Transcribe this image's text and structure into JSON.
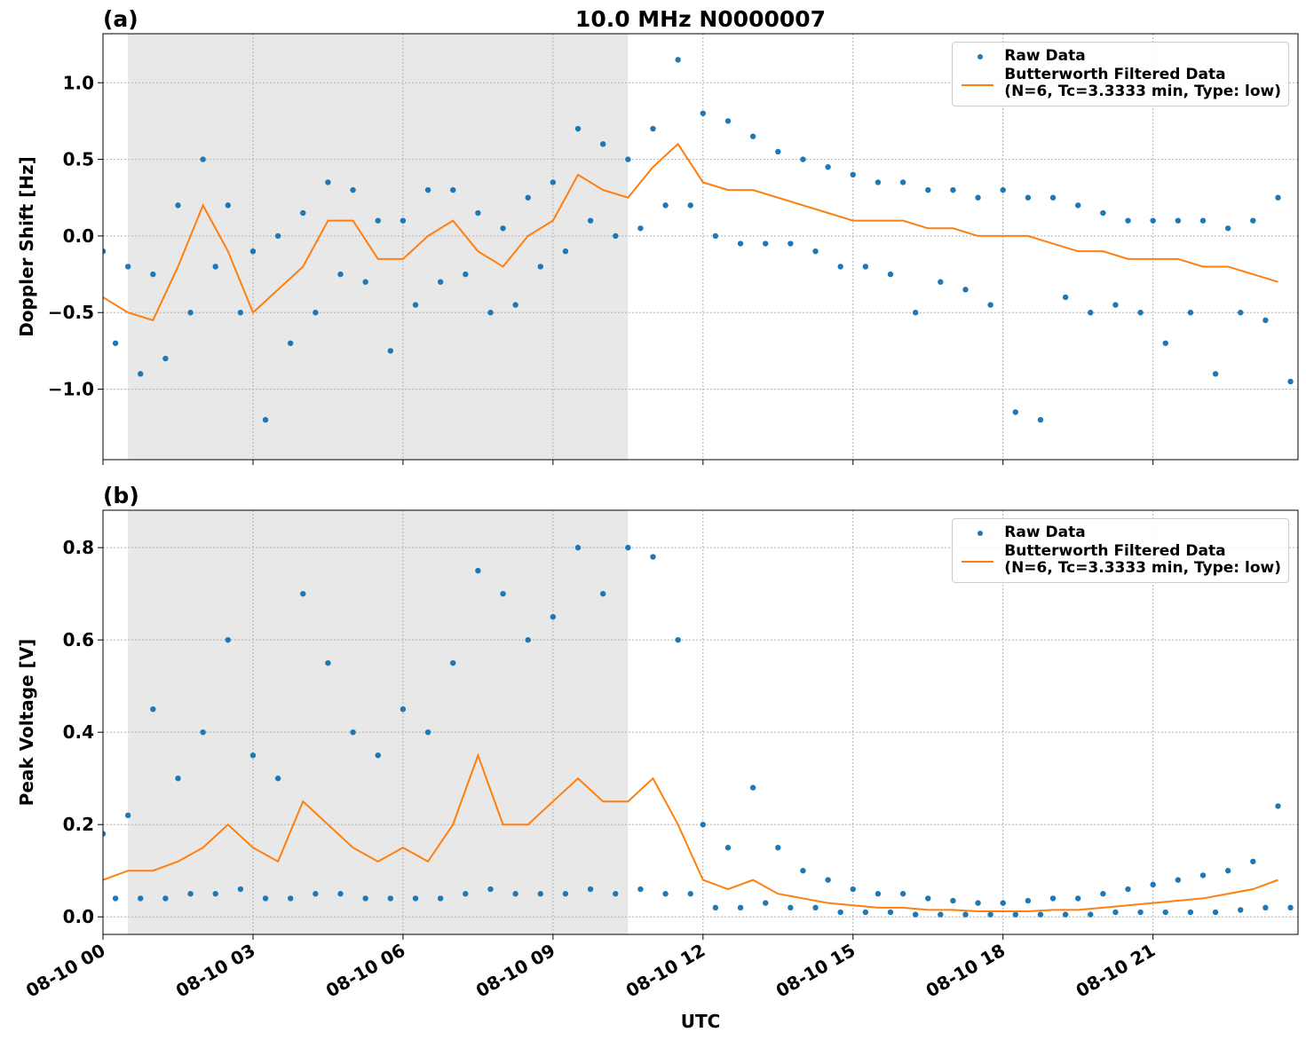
{
  "chart_data": [
    {
      "type": "scatter",
      "title": "10.0 MHz N0000007",
      "panel_label": "(a)",
      "ylabel": "Doppler Shift [Hz]",
      "xlim": [
        0,
        23.9
      ],
      "ylim": [
        -1.46,
        1.32
      ],
      "grid": true,
      "show_xtick_labels": false,
      "xticks": [
        0,
        3,
        6,
        9,
        12,
        15,
        18,
        21
      ],
      "yticks": [
        {
          "value": -1.0,
          "label": "−1.0"
        },
        {
          "value": -0.5,
          "label": "−0.5"
        },
        {
          "value": 0.0,
          "label": "0.0"
        },
        {
          "value": 0.5,
          "label": "0.5"
        },
        {
          "value": 1.0,
          "label": "1.0"
        }
      ],
      "shaded_span": [
        0.5,
        10.5
      ],
      "shade_color": "#e8e8e8",
      "legend": "upper right",
      "series": [
        {
          "name": "Raw Data",
          "type": "scatter",
          "color": "#1f77b4",
          "x": [
            0,
            0.25,
            0.5,
            0.75,
            1,
            1.25,
            1.5,
            1.75,
            2,
            2.25,
            2.5,
            2.75,
            3,
            3.25,
            3.5,
            3.75,
            4,
            4.25,
            4.5,
            4.75,
            5,
            5.25,
            5.5,
            5.75,
            6,
            6.25,
            6.5,
            6.75,
            7,
            7.25,
            7.5,
            7.75,
            8,
            8.25,
            8.5,
            8.75,
            9,
            9.25,
            9.5,
            9.75,
            10,
            10.25,
            10.5,
            10.75,
            11,
            11.25,
            11.5,
            11.75,
            12,
            12.25,
            12.5,
            12.75,
            13,
            13.25,
            13.5,
            13.75,
            14,
            14.25,
            14.5,
            14.75,
            15,
            15.25,
            15.5,
            15.75,
            16,
            16.25,
            16.5,
            16.75,
            17,
            17.25,
            17.5,
            17.75,
            18,
            18.25,
            18.5,
            18.75,
            19,
            19.25,
            19.5,
            19.75,
            20,
            20.25,
            20.5,
            20.75,
            21,
            21.25,
            21.5,
            21.75,
            22,
            22.25,
            22.5,
            22.75,
            23,
            23.25,
            23.5,
            23.75
          ],
          "values": [
            -0.1,
            -0.7,
            -0.2,
            -0.9,
            -0.25,
            -0.8,
            0.2,
            -0.5,
            0.5,
            -0.2,
            0.2,
            -0.5,
            -0.1,
            -1.2,
            0.0,
            -0.7,
            0.15,
            -0.5,
            0.35,
            -0.25,
            0.3,
            -0.3,
            0.1,
            -0.75,
            0.1,
            -0.45,
            0.3,
            -0.3,
            0.3,
            -0.25,
            0.15,
            -0.5,
            0.05,
            -0.45,
            0.25,
            -0.2,
            0.35,
            -0.1,
            0.7,
            0.1,
            0.6,
            0.0,
            0.5,
            0.05,
            0.7,
            0.2,
            1.15,
            0.2,
            0.8,
            0.0,
            0.75,
            -0.05,
            0.65,
            -0.05,
            0.55,
            -0.05,
            0.5,
            -0.1,
            0.45,
            -0.2,
            0.4,
            -0.2,
            0.35,
            -0.25,
            0.35,
            -0.5,
            0.3,
            -0.3,
            0.3,
            -0.35,
            0.25,
            -0.45,
            0.3,
            -1.15,
            0.25,
            -1.2,
            0.25,
            -0.4,
            0.2,
            -0.5,
            0.15,
            -0.45,
            0.1,
            -0.5,
            0.1,
            -0.7,
            0.1,
            -0.5,
            0.1,
            -0.9,
            0.05,
            -0.5,
            0.1,
            -0.55,
            0.25,
            -0.95
          ]
        },
        {
          "name": "Butterworth Filtered Data\n(N=6, Tc=3.3333 min, Type: low)",
          "type": "line",
          "color": "#ff7f0e",
          "x": [
            0,
            0.5,
            1,
            1.5,
            2,
            2.5,
            3,
            3.5,
            4,
            4.5,
            5,
            5.5,
            6,
            6.5,
            7,
            7.5,
            8,
            8.5,
            9,
            9.5,
            10,
            10.5,
            11,
            11.5,
            12,
            12.5,
            13,
            13.5,
            14,
            14.5,
            15,
            15.5,
            16,
            16.5,
            17,
            17.5,
            18,
            18.5,
            19,
            19.5,
            20,
            20.5,
            21,
            21.5,
            22,
            22.5,
            23,
            23.5
          ],
          "values": [
            -0.4,
            -0.5,
            -0.55,
            -0.2,
            0.2,
            -0.1,
            -0.5,
            -0.35,
            -0.2,
            0.1,
            0.1,
            -0.15,
            -0.15,
            0.0,
            0.1,
            -0.1,
            -0.2,
            0.0,
            0.1,
            0.4,
            0.3,
            0.25,
            0.45,
            0.6,
            0.35,
            0.3,
            0.3,
            0.25,
            0.2,
            0.15,
            0.1,
            0.1,
            0.1,
            0.05,
            0.05,
            0.0,
            0.0,
            0.0,
            -0.05,
            -0.1,
            -0.1,
            -0.15,
            -0.15,
            -0.15,
            -0.2,
            -0.2,
            -0.25,
            -0.3
          ]
        }
      ]
    },
    {
      "type": "scatter",
      "panel_label": "(b)",
      "ylabel": "Peak Voltage [V]",
      "xlabel": "UTC",
      "xlim": [
        0,
        23.9
      ],
      "ylim": [
        -0.038,
        0.881
      ],
      "grid": true,
      "show_xtick_labels": true,
      "xticks": [
        {
          "value": 0,
          "label": "08-10 00"
        },
        {
          "value": 3,
          "label": "08-10 03"
        },
        {
          "value": 6,
          "label": "08-10 06"
        },
        {
          "value": 9,
          "label": "08-10 09"
        },
        {
          "value": 12,
          "label": "08-10 12"
        },
        {
          "value": 15,
          "label": "08-10 15"
        },
        {
          "value": 18,
          "label": "08-10 18"
        },
        {
          "value": 21,
          "label": "08-10 21"
        }
      ],
      "yticks": [
        {
          "value": 0.0,
          "label": "0.0"
        },
        {
          "value": 0.2,
          "label": "0.2"
        },
        {
          "value": 0.4,
          "label": "0.4"
        },
        {
          "value": 0.6,
          "label": "0.6"
        },
        {
          "value": 0.8,
          "label": "0.8"
        }
      ],
      "shaded_span": [
        0.5,
        10.5
      ],
      "shade_color": "#e8e8e8",
      "legend": "upper right",
      "series": [
        {
          "name": "Raw Data",
          "type": "scatter",
          "color": "#1f77b4",
          "x": [
            0,
            0.25,
            0.5,
            0.75,
            1,
            1.25,
            1.5,
            1.75,
            2,
            2.25,
            2.5,
            2.75,
            3,
            3.25,
            3.5,
            3.75,
            4,
            4.25,
            4.5,
            4.75,
            5,
            5.25,
            5.5,
            5.75,
            6,
            6.25,
            6.5,
            6.75,
            7,
            7.25,
            7.5,
            7.75,
            8,
            8.25,
            8.5,
            8.75,
            9,
            9.25,
            9.5,
            9.75,
            10,
            10.25,
            10.5,
            10.75,
            11,
            11.25,
            11.5,
            11.75,
            12,
            12.25,
            12.5,
            12.75,
            13,
            13.25,
            13.5,
            13.75,
            14,
            14.25,
            14.5,
            14.75,
            15,
            15.25,
            15.5,
            15.75,
            16,
            16.25,
            16.5,
            16.75,
            17,
            17.25,
            17.5,
            17.75,
            18,
            18.25,
            18.5,
            18.75,
            19,
            19.25,
            19.5,
            19.75,
            20,
            20.25,
            20.5,
            20.75,
            21,
            21.25,
            21.5,
            21.75,
            22,
            22.25,
            22.5,
            22.75,
            23,
            23.25,
            23.5,
            23.75
          ],
          "values": [
            0.18,
            0.04,
            0.22,
            0.04,
            0.45,
            0.04,
            0.3,
            0.05,
            0.4,
            0.05,
            0.6,
            0.06,
            0.35,
            0.04,
            0.3,
            0.04,
            0.7,
            0.05,
            0.55,
            0.05,
            0.4,
            0.04,
            0.35,
            0.04,
            0.45,
            0.04,
            0.4,
            0.04,
            0.55,
            0.05,
            0.75,
            0.06,
            0.7,
            0.05,
            0.6,
            0.05,
            0.65,
            0.05,
            0.8,
            0.06,
            0.7,
            0.05,
            0.8,
            0.06,
            0.78,
            0.05,
            0.6,
            0.05,
            0.2,
            0.02,
            0.15,
            0.02,
            0.28,
            0.03,
            0.15,
            0.02,
            0.1,
            0.02,
            0.08,
            0.01,
            0.06,
            0.01,
            0.05,
            0.01,
            0.05,
            0.005,
            0.04,
            0.005,
            0.035,
            0.005,
            0.03,
            0.005,
            0.03,
            0.005,
            0.035,
            0.005,
            0.04,
            0.005,
            0.04,
            0.005,
            0.05,
            0.01,
            0.06,
            0.01,
            0.07,
            0.01,
            0.08,
            0.01,
            0.09,
            0.01,
            0.1,
            0.015,
            0.12,
            0.02,
            0.24,
            0.02
          ]
        },
        {
          "name": "Butterworth Filtered Data\n(N=6, Tc=3.3333 min, Type: low)",
          "type": "line",
          "color": "#ff7f0e",
          "x": [
            0,
            0.5,
            1,
            1.5,
            2,
            2.5,
            3,
            3.5,
            4,
            4.5,
            5,
            5.5,
            6,
            6.5,
            7,
            7.5,
            8,
            8.5,
            9,
            9.5,
            10,
            10.5,
            11,
            11.5,
            12,
            12.5,
            13,
            13.5,
            14,
            14.5,
            15,
            15.5,
            16,
            16.5,
            17,
            17.5,
            18,
            18.5,
            19,
            19.5,
            20,
            20.5,
            21,
            21.5,
            22,
            22.5,
            23,
            23.5
          ],
          "values": [
            0.08,
            0.1,
            0.1,
            0.12,
            0.15,
            0.2,
            0.15,
            0.12,
            0.25,
            0.2,
            0.15,
            0.12,
            0.15,
            0.12,
            0.2,
            0.35,
            0.2,
            0.2,
            0.25,
            0.3,
            0.25,
            0.25,
            0.3,
            0.2,
            0.08,
            0.06,
            0.08,
            0.05,
            0.04,
            0.03,
            0.025,
            0.02,
            0.02,
            0.015,
            0.015,
            0.012,
            0.012,
            0.012,
            0.015,
            0.015,
            0.02,
            0.025,
            0.03,
            0.035,
            0.04,
            0.05,
            0.06,
            0.08
          ]
        }
      ]
    }
  ]
}
